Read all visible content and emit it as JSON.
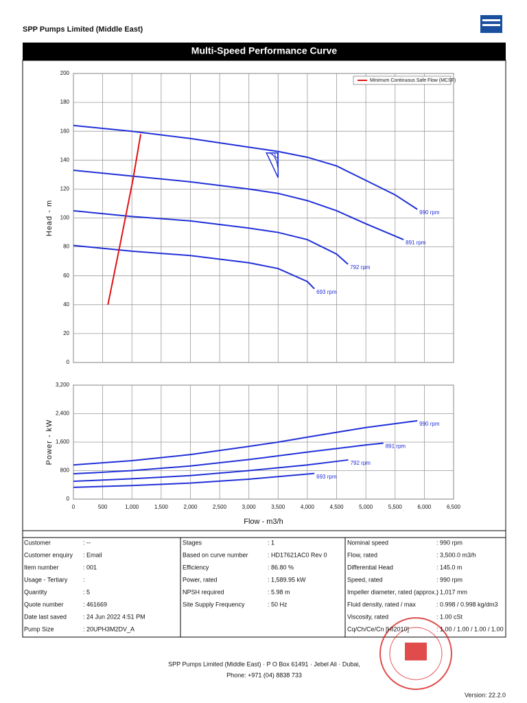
{
  "header": {
    "company": "SPP Pumps Limited (Middle East)",
    "title": "Multi-Speed Performance Curve"
  },
  "chart_data": [
    {
      "type": "line",
      "ylabel": "Head - m",
      "xlim": [
        0,
        6500
      ],
      "xticks": [
        0,
        500,
        1000,
        1500,
        2000,
        2500,
        3000,
        3500,
        4000,
        4500,
        5000,
        5500,
        6000,
        6500
      ],
      "ylim": [
        0,
        200
      ],
      "yticks": [
        0,
        20,
        40,
        60,
        80,
        100,
        120,
        140,
        160,
        180,
        200
      ],
      "grid": true,
      "legend": "upper right",
      "duty_point": {
        "x": 3500,
        "y": 145
      },
      "series": [
        {
          "name": "990 rpm",
          "color": "#1f2fd8",
          "x": [
            0,
            1000,
            2000,
            3000,
            3500,
            4000,
            4500,
            5000,
            5500,
            5880
          ],
          "values": [
            164,
            160,
            155,
            149,
            146,
            142,
            136,
            126,
            116,
            106
          ]
        },
        {
          "name": "891 rpm",
          "color": "#1f2fd8",
          "x": [
            0,
            1000,
            2000,
            3000,
            3500,
            4000,
            4500,
            5000,
            5645
          ],
          "values": [
            133,
            129,
            125,
            120,
            117,
            112,
            105,
            96,
            85
          ]
        },
        {
          "name": "792 rpm",
          "color": "#1f2fd8",
          "x": [
            0,
            1000,
            2000,
            3000,
            3500,
            4000,
            4500,
            4695
          ],
          "values": [
            105,
            101,
            98,
            93,
            90,
            85,
            75,
            68
          ]
        },
        {
          "name": "693 rpm",
          "color": "#1f2fd8",
          "x": [
            0,
            1000,
            2000,
            3000,
            3500,
            4000,
            4120
          ],
          "values": [
            81,
            77,
            74,
            69,
            65,
            56,
            51
          ]
        },
        {
          "name": "Minimum Continuous Safe Flow (MCSF)",
          "color": "#e01010",
          "legend": true,
          "x": [
            590,
            790,
            1020,
            1150
          ],
          "values": [
            40,
            80,
            127,
            158
          ]
        }
      ]
    },
    {
      "type": "line",
      "xlabel": "Flow - m3/h",
      "ylabel": "Power - kW",
      "xlim": [
        0,
        6500
      ],
      "xticks": [
        0,
        500,
        {
          "value": 1000,
          "label": "1,000"
        },
        {
          "value": 1500,
          "label": "1,500"
        },
        {
          "value": 2000,
          "label": "2,000"
        },
        {
          "value": 2500,
          "label": "2,500"
        },
        {
          "value": 3000,
          "label": "3,000"
        },
        {
          "value": 3500,
          "label": "3,500"
        },
        {
          "value": 4000,
          "label": "4,000"
        },
        {
          "value": 4500,
          "label": "4,500"
        },
        {
          "value": 5000,
          "label": "5,000"
        },
        {
          "value": 5500,
          "label": "5,500"
        },
        {
          "value": 6000,
          "label": "6,000"
        },
        {
          "value": 6500,
          "label": "6,500"
        }
      ],
      "ylim": [
        0,
        3200
      ],
      "yticks": [
        0,
        800,
        {
          "value": 1600,
          "label": "1,600"
        },
        {
          "value": 2400,
          "label": "2,400"
        },
        {
          "value": 3200,
          "label": "3,200"
        }
      ],
      "grid": true,
      "series": [
        {
          "name": "990 rpm",
          "color": "#1f2fd8",
          "x": [
            0,
            1000,
            2000,
            3000,
            3500,
            4000,
            5000,
            5880
          ],
          "values": [
            960,
            1080,
            1250,
            1480,
            1600,
            1740,
            2010,
            2200
          ]
        },
        {
          "name": "891 rpm",
          "color": "#1f2fd8",
          "x": [
            0,
            1000,
            2000,
            3000,
            4000,
            5000,
            5300
          ],
          "values": [
            710,
            800,
            930,
            1110,
            1320,
            1520,
            1570
          ]
        },
        {
          "name": "792 rpm",
          "color": "#1f2fd8",
          "x": [
            0,
            1000,
            2000,
            3000,
            4000,
            4700
          ],
          "values": [
            500,
            570,
            660,
            800,
            960,
            1100
          ]
        },
        {
          "name": "693 rpm",
          "color": "#1f2fd8",
          "x": [
            0,
            1000,
            2000,
            3000,
            4120
          ],
          "values": [
            330,
            380,
            450,
            560,
            720
          ]
        }
      ]
    }
  ],
  "table": {
    "columns": [
      [
        [
          "Customer",
          ": --"
        ],
        [
          "Customer enquiry",
          ": Email"
        ],
        [
          "Item number",
          ": 001"
        ],
        [
          "Usage - Tertiary",
          ":"
        ],
        [
          "Quantity",
          ": 5"
        ],
        [
          "Quote number",
          ": 461669"
        ],
        [
          "Date last saved",
          ": 24 Jun 2022 4:51 PM"
        ],
        [
          "Pump Size",
          ": 20UPH3M2DV_A"
        ]
      ],
      [
        [
          "Stages",
          ": 1"
        ],
        [
          "Based on curve number",
          ": HD17621AC0 Rev 0"
        ],
        [
          "Efficiency",
          ": 86.80 %"
        ],
        [
          "Power, rated",
          ": 1,589.95 kW"
        ],
        [
          "NPSH required",
          ": 5.98 m"
        ],
        [
          "Site Supply Frequency",
          ": 50 Hz"
        ]
      ],
      [
        [
          "Nominal speed",
          ": 990 rpm"
        ],
        [
          "Flow, rated",
          ": 3,500.0 m3/h"
        ],
        [
          "Differential Head",
          ": 145.0 m"
        ],
        [
          "Speed, rated",
          ": 990 rpm"
        ],
        [
          "Impeller diameter, rated (approx.)",
          ": 1,017 mm"
        ],
        [
          "Fluid density, rated / max",
          ": 0.998 / 0.998 kg/dm3"
        ],
        [
          "Viscosity, rated",
          ": 1.00 cSt"
        ],
        [
          "Cq/Ch/Ce/Cn  [HI2010]",
          ": 1.00 / 1.00 / 1.00 / 1.00"
        ]
      ]
    ]
  },
  "footer": {
    "address": "SPP Pumps Limited (Middle East) · P O Box 61491 ·  Jebel Ali ·  Dubai,",
    "phone": "Phone: +971 (04) 8838 733",
    "version": "Version: 22.2.0"
  }
}
